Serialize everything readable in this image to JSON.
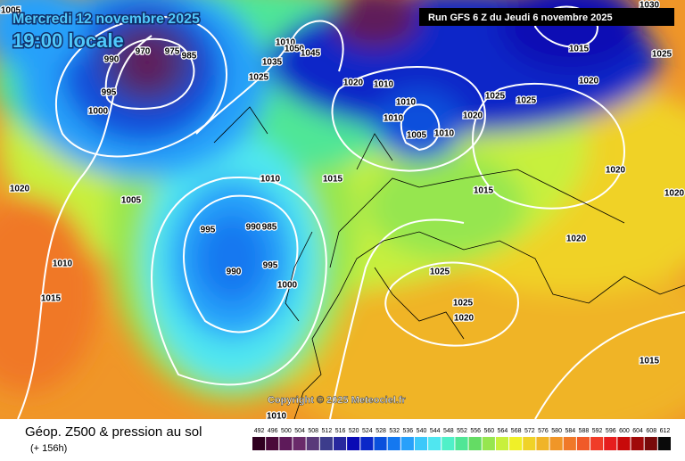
{
  "header": {
    "date": "Mercredi 12 novembre 2025",
    "time": "19:00 locale",
    "run": "Run GFS 6 Z du Jeudi 6 novembre 2025"
  },
  "map": {
    "copyright": "Copyright © 2025 Meteociel.fr",
    "isobar_labels": [
      1005,
      990,
      970,
      975,
      985,
      995,
      1000,
      1020,
      1005,
      1010,
      1015,
      995,
      990,
      985,
      990,
      995,
      1000,
      1010,
      1015,
      1010,
      1050,
      1045,
      1035,
      1025,
      1020,
      1010,
      1010,
      1010,
      1005,
      1010,
      1020,
      1025,
      1025,
      1015,
      1020,
      1025,
      1030,
      1020,
      1015,
      1020,
      1020,
      1025,
      1025,
      1020,
      1015,
      1010
    ]
  },
  "legend": {
    "title": "Géop. Z500 & pression au sol",
    "lead": "(+ 156h)",
    "scale": [
      492,
      496,
      500,
      504,
      508,
      512,
      516,
      520,
      524,
      528,
      532,
      536,
      540,
      544,
      548,
      552,
      556,
      560,
      564,
      568,
      572,
      576,
      580,
      584,
      588,
      592,
      596,
      600,
      604,
      608,
      612
    ],
    "colors": [
      "#300020",
      "#4a0a3a",
      "#5e1a5a",
      "#6a2a6a",
      "#5a3a7a",
      "#3c3c8c",
      "#28289e",
      "#0a0ab4",
      "#0a28c8",
      "#0a50dc",
      "#1478f0",
      "#28a0fa",
      "#3cc8fa",
      "#50e6f0",
      "#50f0c8",
      "#50e696",
      "#64dc64",
      "#96e650",
      "#c8f03c",
      "#f0f028",
      "#f0d228",
      "#f0b428",
      "#f09628",
      "#f07828",
      "#f05a28",
      "#f03c28",
      "#e61e1e",
      "#c80a0a",
      "#a00a0a",
      "#780a0a",
      "#0a0a0a"
    ]
  }
}
